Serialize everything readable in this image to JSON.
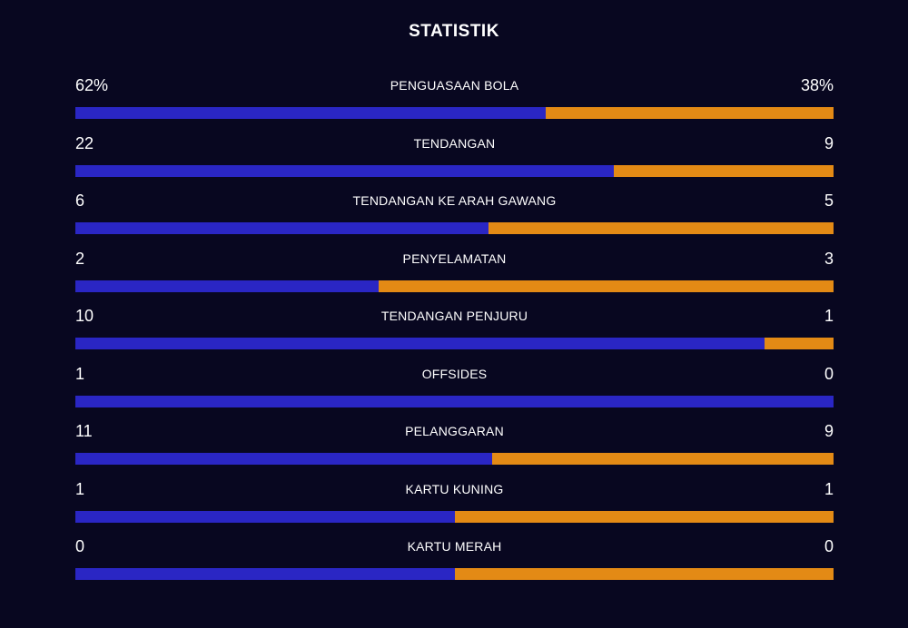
{
  "title": "STATISTIK",
  "colors": {
    "background": "#080720",
    "home": "#2a26c4",
    "away": "#e38a15",
    "text": "#ffffff"
  },
  "stats": [
    {
      "label": "PENGUASAAN BOLA",
      "home": "62%",
      "away": "38%",
      "home_share": 0.62
    },
    {
      "label": "TENDANGAN",
      "home": "22",
      "away": "9",
      "home_share": 0.7097
    },
    {
      "label": "TENDANGAN KE ARAH GAWANG",
      "home": "6",
      "away": "5",
      "home_share": 0.5455
    },
    {
      "label": "PENYELAMATAN",
      "home": "2",
      "away": "3",
      "home_share": 0.4
    },
    {
      "label": "TENDANGAN PENJURU",
      "home": "10",
      "away": "1",
      "home_share": 0.9091
    },
    {
      "label": "OFFSIDES",
      "home": "1",
      "away": "0",
      "home_share": 1.0
    },
    {
      "label": "PELANGGARAN",
      "home": "11",
      "away": "9",
      "home_share": 0.55
    },
    {
      "label": "KARTU KUNING",
      "home": "1",
      "away": "1",
      "home_share": 0.5
    },
    {
      "label": "KARTU MERAH",
      "home": "0",
      "away": "0",
      "home_share": 0.5
    }
  ]
}
